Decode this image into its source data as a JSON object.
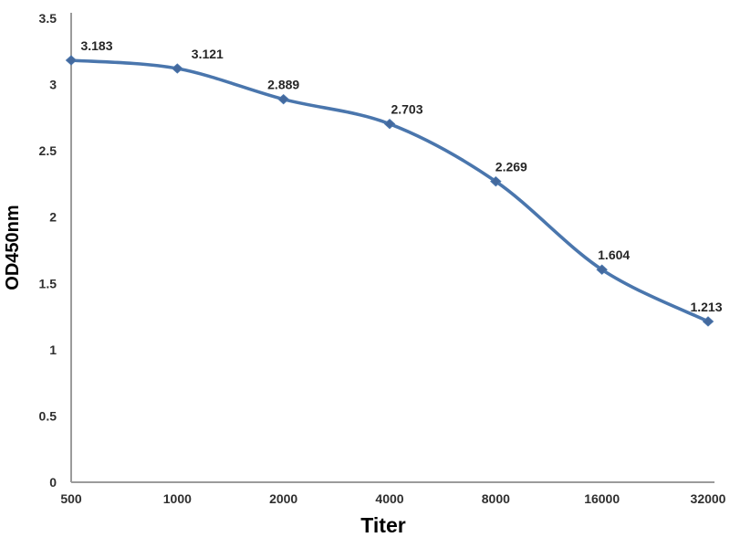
{
  "chart_data": {
    "type": "line",
    "title": "",
    "xlabel": "Titer",
    "ylabel": "OD450nm",
    "categories": [
      "500",
      "1000",
      "2000",
      "4000",
      "8000",
      "16000",
      "32000"
    ],
    "series": [
      {
        "name": "OD450nm",
        "values": [
          3.183,
          3.121,
          2.889,
          2.703,
          2.269,
          1.604,
          1.213
        ]
      }
    ],
    "point_labels": [
      "3.183",
      "3.121",
      "2.889",
      "2.703",
      "2.269",
      "1.604",
      "1.213"
    ],
    "y_ticks": [
      "0",
      "0.5",
      "1",
      "1.5",
      "2",
      "2.5",
      "3",
      "3.5"
    ],
    "ylim": [
      0,
      3.5
    ],
    "grid": false,
    "legend": "none",
    "marker": "diamond",
    "line_smooth": true,
    "colors": {
      "line": "#4a76ad",
      "marker": "#44699d",
      "axis": "#9b9b9b",
      "tick_text": "#2f2f2f",
      "label_text": "#262626",
      "background": "#ffffff"
    }
  }
}
